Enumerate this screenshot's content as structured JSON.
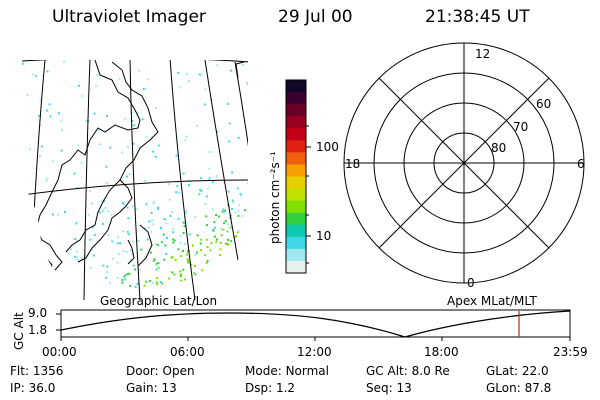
{
  "header": {
    "instrument": "Ultraviolet Imager",
    "date": "29 Jul 00",
    "time": "21:38:45 UT"
  },
  "colorbar": {
    "unit_label": "photon cm⁻²s⁻¹",
    "tick_labels": [
      "100",
      "10"
    ],
    "colors": [
      "#14082a",
      "#3a0030",
      "#6a0028",
      "#9a0020",
      "#c40018",
      "#e02010",
      "#f06010",
      "#f8a000",
      "#e8d000",
      "#c0e000",
      "#80e000",
      "#30d040",
      "#10c8b0",
      "#40d8e8",
      "#a0e8f0",
      "#e8f0f0"
    ]
  },
  "polar_grid": {
    "mlt_labels": {
      "top": "12",
      "left": "18",
      "right": "6",
      "bottom": "0"
    },
    "lat_labels": [
      "60",
      "70",
      "80"
    ]
  },
  "map_label": "Geographic Lat/Lon",
  "polar_label": "Apex MLat/MLT",
  "altitude_strip": {
    "ylabel": "GC Alt",
    "y_ticks": [
      "9.0",
      "1.8"
    ],
    "time_ticks": [
      "00:00",
      "06:00",
      "12:00",
      "18:00",
      "23:59"
    ],
    "curve_color": "#000000",
    "marker_color": "#cc2020"
  },
  "info": {
    "flt": {
      "label": "Flt:",
      "value": "1356"
    },
    "door": {
      "label": "Door:",
      "value": "Open"
    },
    "mode": {
      "label": "Mode:",
      "value": "Normal"
    },
    "gcalt": {
      "label": "GC Alt:",
      "value": "8.0 Re"
    },
    "glat": {
      "label": "GLat:",
      "value": "22.0"
    },
    "ip": {
      "label": "IP:",
      "value": "36.0"
    },
    "gain": {
      "label": "Gain:",
      "value": "13"
    },
    "dsp": {
      "label": "Dsp:",
      "value": "1.2"
    },
    "seq": {
      "label": "Seq:",
      "value": "13"
    },
    "glon": {
      "label": "GLon:",
      "value": "87.8"
    }
  }
}
